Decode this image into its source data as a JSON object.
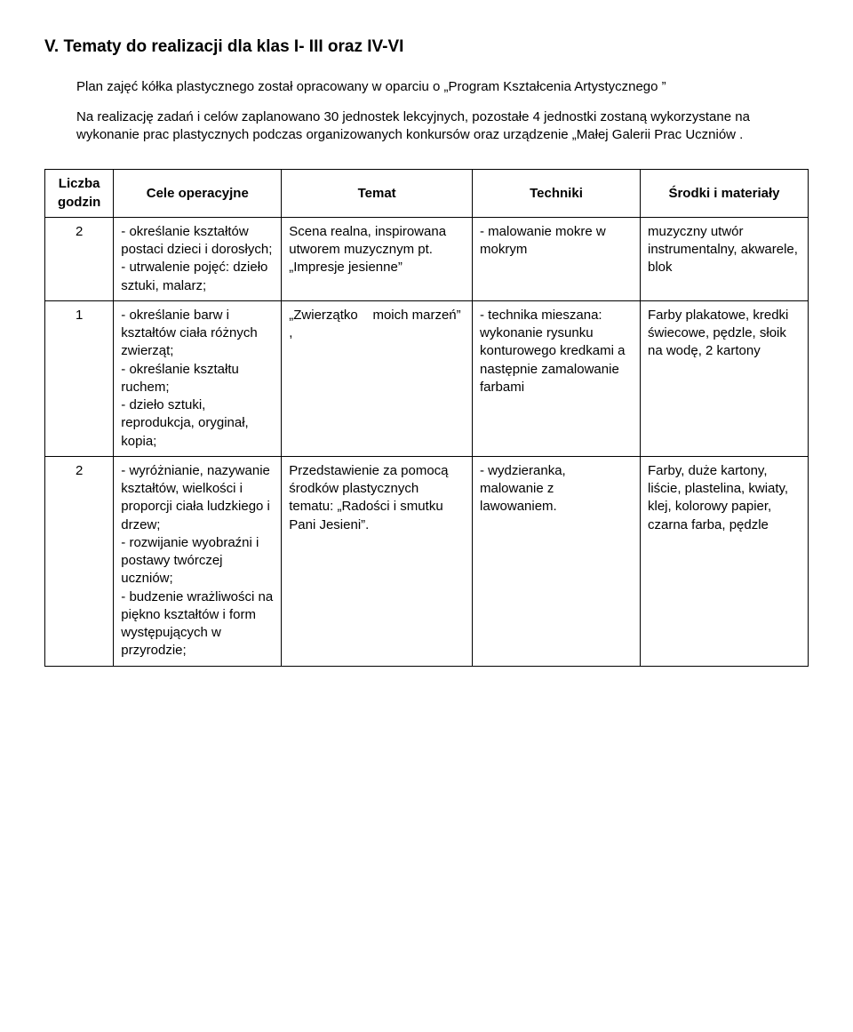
{
  "heading": "V. Tematy do realizacji dla klas I- III  oraz  IV-VI",
  "para1": "Plan zajęć kółka plastycznego został opracowany w oparciu o „Program  Kształcenia Artystycznego ”",
  "para2": "Na realizację zadań i celów zaplanowano 30 jednostek lekcyjnych, pozostałe 4 jednostki zostaną wykorzystane na wykonanie prac plastycznych podczas organizowanych konkursów oraz urządzenie „Małej Galerii Prac Uczniów .",
  "columns": {
    "c1": "Liczba godzin",
    "c2": "Cele operacyjne",
    "c3": "Temat",
    "c4": "Techniki",
    "c5": "Środki i materiały"
  },
  "rows": [
    {
      "hours": "2",
      "goals": "- określanie kształtów postaci dzieci i dorosłych;\n- utrwalenie pojęć: dzieło sztuki, malarz;",
      "topic": "Scena realna, inspirowana utworem muzycznym pt. „Impresje jesienne”",
      "tech": "- malowanie mokre w mokrym",
      "mat": "muzyczny utwór instrumentalny, akwarele, blok"
    },
    {
      "hours": "1",
      "goals": "- określanie barw i kształtów ciała różnych zwierząt;\n- określanie kształtu ruchem;\n- dzieło sztuki, reprodukcja, oryginał, kopia;",
      "topic": "„Zwierzątko    moich marzeń” ,",
      "tech": "- technika mieszana: wykonanie rysunku konturowego kredkami a następnie zamalowanie farbami",
      "mat": "Farby plakatowe, kredki świecowe, pędzle, słoik na wodę, 2 kartony"
    },
    {
      "hours": "2",
      "goals": "- wyróżnianie, nazywanie kształtów, wielkości i proporcji ciała ludzkiego i drzew;\n- rozwijanie wyobraźni i postawy twórczej uczniów;\n- budzenie wrażliwości na piękno kształtów i form występujących w przyrodzie;",
      "topic": "Przedstawienie za pomocą środków plastycznych tematu: „Radości i smutku Pani Jesieni”.",
      "tech": "- wydzieranka, malowanie z lawowaniem.",
      "mat": "Farby, duże kartony, liście, plastelina, kwiaty, klej, kolorowy papier, czarna farba, pędzle"
    }
  ]
}
